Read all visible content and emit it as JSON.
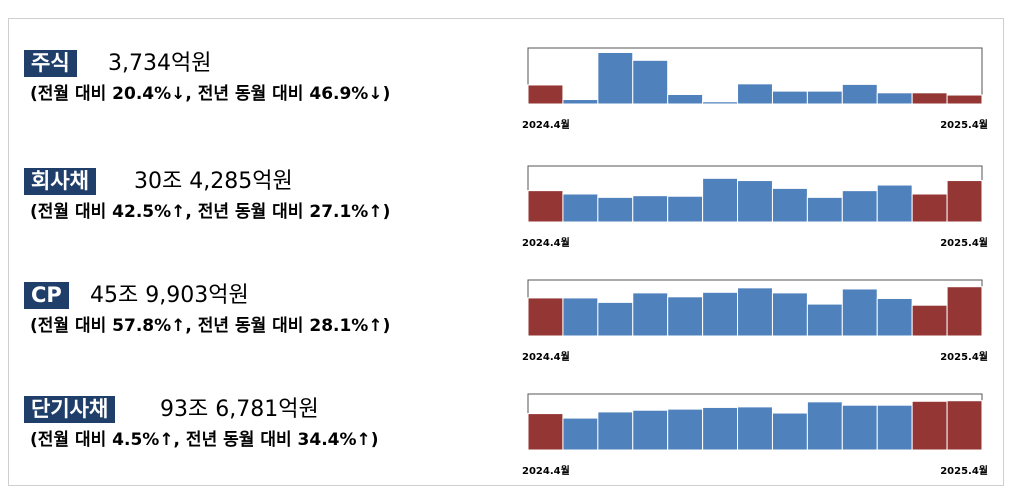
{
  "colors": {
    "tag_bg": "#1f3f6a",
    "bar_highlight": "#943634",
    "bar_normal": "#4f81bd"
  },
  "rows": [
    {
      "tag": "주식",
      "amount": "3,734억원",
      "change": "(전월 대비 20.4%↓, 전년 동월 대비 46.9%↓)"
    },
    {
      "tag": "회사채",
      "amount": "30조 4,285억원",
      "change": "(전월 대비 42.5%↑, 전년 동월 대비 27.1%↑)"
    },
    {
      "tag": "CP",
      "amount": "45조 9,903억원",
      "change": "(전월 대비 57.8%↑, 전년 동월 대비 28.1%↑)"
    },
    {
      "tag": "단기사채",
      "amount": "93조 6,781억원",
      "change": "(전월 대비 4.5%↑, 전년 동월 대비 34.4%↑)"
    }
  ],
  "chart_data": [
    {
      "type": "bar",
      "categories": [
        "2024.4월",
        "",
        "",
        "",
        "",
        "",
        "",
        "",
        "",
        "",
        "",
        "",
        "2025.4월"
      ],
      "values": [
        0.34,
        0.08,
        0.92,
        0.78,
        0.17,
        0.04,
        0.36,
        0.23,
        0.23,
        0.35,
        0.2,
        0.2,
        0.16
      ],
      "highlight": [
        0,
        11,
        12
      ]
    },
    {
      "type": "bar",
      "categories": [
        "2024.4월",
        "",
        "",
        "",
        "",
        "",
        "",
        "",
        "",
        "",
        "",
        "",
        "2025.4월"
      ],
      "values": [
        0.56,
        0.5,
        0.44,
        0.47,
        0.46,
        0.78,
        0.74,
        0.6,
        0.44,
        0.56,
        0.66,
        0.5,
        0.74
      ],
      "highlight": [
        0,
        11,
        12
      ]
    },
    {
      "type": "bar",
      "categories": [
        "2024.4월",
        "",
        "",
        "",
        "",
        "",
        "",
        "",
        "",
        "",
        "",
        "",
        "2025.4월"
      ],
      "values": [
        0.68,
        0.68,
        0.6,
        0.77,
        0.7,
        0.78,
        0.86,
        0.77,
        0.57,
        0.84,
        0.67,
        0.55,
        0.88
      ],
      "highlight": [
        0,
        11,
        12
      ]
    },
    {
      "type": "bar",
      "categories": [
        "2024.4월",
        "",
        "",
        "",
        "",
        "",
        "",
        "",
        "",
        "",
        "",
        "",
        "2025.4월"
      ],
      "values": [
        0.65,
        0.57,
        0.68,
        0.71,
        0.73,
        0.76,
        0.77,
        0.66,
        0.86,
        0.8,
        0.8,
        0.87,
        0.88
      ],
      "highlight": [
        0,
        11,
        12
      ]
    }
  ]
}
